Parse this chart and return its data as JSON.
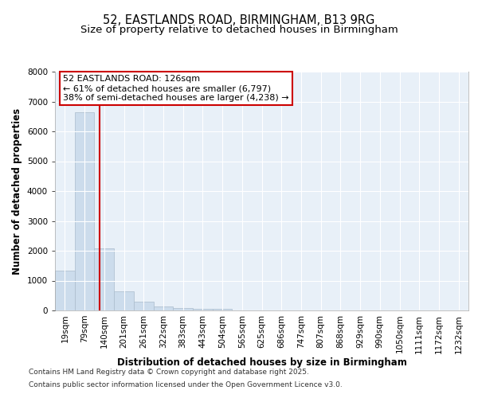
{
  "title_line1": "52, EASTLANDS ROAD, BIRMINGHAM, B13 9RG",
  "title_line2": "Size of property relative to detached houses in Birmingham",
  "xlabel": "Distribution of detached houses by size in Birmingham",
  "ylabel": "Number of detached properties",
  "categories": [
    "19sqm",
    "79sqm",
    "140sqm",
    "201sqm",
    "261sqm",
    "322sqm",
    "383sqm",
    "443sqm",
    "504sqm",
    "565sqm",
    "625sqm",
    "686sqm",
    "747sqm",
    "807sqm",
    "868sqm",
    "929sqm",
    "990sqm",
    "1050sqm",
    "1111sqm",
    "1172sqm",
    "1232sqm"
  ],
  "values": [
    1340,
    6650,
    2090,
    640,
    305,
    130,
    80,
    50,
    55,
    0,
    0,
    0,
    0,
    0,
    0,
    0,
    0,
    0,
    0,
    0,
    0
  ],
  "bar_color": "#ccdcec",
  "bar_edgecolor": "#aabccc",
  "bar_width": 1.0,
  "vline_color": "#cc0000",
  "vline_x": 1.77,
  "ylim": [
    0,
    8000
  ],
  "yticks": [
    0,
    1000,
    2000,
    3000,
    4000,
    5000,
    6000,
    7000,
    8000
  ],
  "annotation_text": "52 EASTLANDS ROAD: 126sqm\n← 61% of detached houses are smaller (6,797)\n38% of semi-detached houses are larger (4,238) →",
  "annotation_box_color": "#ffffff",
  "annotation_box_edgecolor": "#cc0000",
  "footer_line1": "Contains HM Land Registry data © Crown copyright and database right 2025.",
  "footer_line2": "Contains public sector information licensed under the Open Government Licence v3.0.",
  "fig_background": "#ffffff",
  "plot_background": "#e8f0f8",
  "grid_color": "#ffffff",
  "title_fontsize": 10.5,
  "subtitle_fontsize": 9.5,
  "axis_label_fontsize": 8.5,
  "tick_fontsize": 7.5,
  "annotation_fontsize": 8,
  "footer_fontsize": 6.5
}
